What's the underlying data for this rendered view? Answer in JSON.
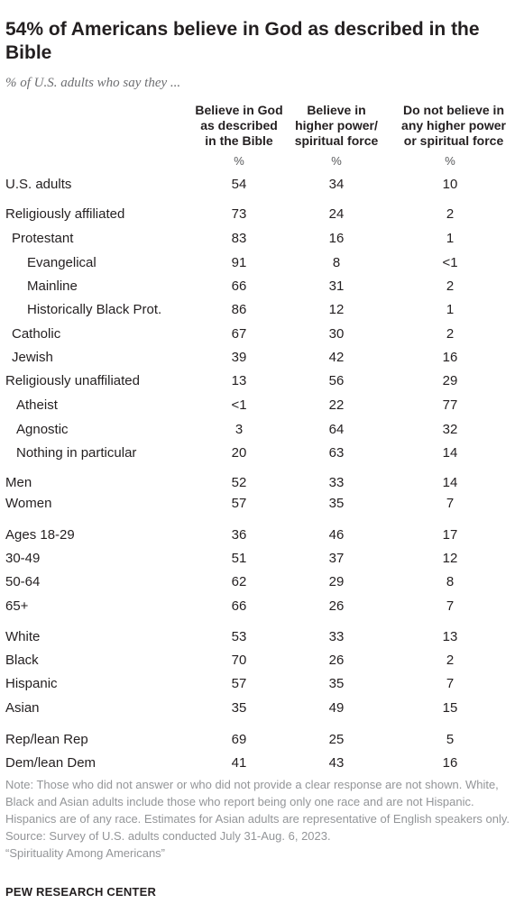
{
  "title": "54% of Americans believe in God as described in the Bible",
  "subtitle": "% of U.S. adults who say they ...",
  "chart_data": {
    "type": "table",
    "columns": [
      {
        "header": "Believe in God as described in the Bible",
        "unit": "%"
      },
      {
        "header": "Believe in higher power/ spiritual force",
        "unit": "%"
      },
      {
        "header": "Do not believe in any higher power or spiritual force",
        "unit": "%"
      }
    ],
    "column_lines": [
      [
        "Believe in God",
        "as described",
        "in the Bible"
      ],
      [
        "Believe in",
        "higher power/",
        "spiritual force"
      ],
      [
        "Do not believe in",
        "any higher power",
        "or spiritual force"
      ]
    ],
    "rows": [
      {
        "label": "U.S. adults",
        "values": [
          "54",
          "34",
          "10"
        ]
      },
      {
        "label": "Religiously affiliated",
        "values": [
          "73",
          "24",
          "2"
        ]
      },
      {
        "label": "Protestant",
        "values": [
          "83",
          "16",
          "1"
        ]
      },
      {
        "label": "Evangelical",
        "values": [
          "91",
          "8",
          "<1"
        ]
      },
      {
        "label": "Mainline",
        "values": [
          "66",
          "31",
          "2"
        ]
      },
      {
        "label": "Historically Black Prot.",
        "values": [
          "86",
          "12",
          "1"
        ]
      },
      {
        "label": "Catholic",
        "values": [
          "67",
          "30",
          "2"
        ]
      },
      {
        "label": "Jewish",
        "values": [
          "39",
          "42",
          "16"
        ]
      },
      {
        "label": "Religiously unaffiliated",
        "values": [
          "13",
          "56",
          "29"
        ]
      },
      {
        "label": "Atheist",
        "values": [
          "<1",
          "22",
          "77"
        ]
      },
      {
        "label": "Agnostic",
        "values": [
          "3",
          "64",
          "32"
        ]
      },
      {
        "label": "Nothing in particular",
        "values": [
          "20",
          "63",
          "14"
        ]
      },
      {
        "label": "Men",
        "values": [
          "52",
          "33",
          "14"
        ]
      },
      {
        "label": "Women",
        "values": [
          "57",
          "35",
          "7"
        ]
      },
      {
        "label": "Ages 18-29",
        "values": [
          "36",
          "46",
          "17"
        ]
      },
      {
        "label": "30-49",
        "values": [
          "51",
          "37",
          "12"
        ]
      },
      {
        "label": "50-64",
        "values": [
          "62",
          "29",
          "8"
        ]
      },
      {
        "label": "65+",
        "values": [
          "66",
          "26",
          "7"
        ]
      },
      {
        "label": "White",
        "values": [
          "53",
          "33",
          "13"
        ]
      },
      {
        "label": "Black",
        "values": [
          "70",
          "26",
          "2"
        ]
      },
      {
        "label": "Hispanic",
        "values": [
          "57",
          "35",
          "7"
        ]
      },
      {
        "label": "Asian",
        "values": [
          "35",
          "49",
          "15"
        ]
      },
      {
        "label": "Rep/lean Rep",
        "values": [
          "69",
          "25",
          "5"
        ]
      },
      {
        "label": "Dem/lean Dem",
        "values": [
          "41",
          "43",
          "16"
        ]
      }
    ]
  },
  "notes": {
    "note": "Note: Those who did not answer or who did not provide a clear response are not shown. White, Black and Asian adults include those who report being only one race and are not Hispanic. Hispanics are of any race. Estimates for Asian adults are representative of English speakers only.",
    "source": "Source: Survey of U.S. adults conducted July 31-Aug. 6, 2023.",
    "report": "“Spirituality Among Americans”"
  },
  "brand": "PEW RESEARCH CENTER",
  "colors": {
    "text": "#231f20",
    "muted": "#939598",
    "subtitle": "#6d6e71"
  }
}
